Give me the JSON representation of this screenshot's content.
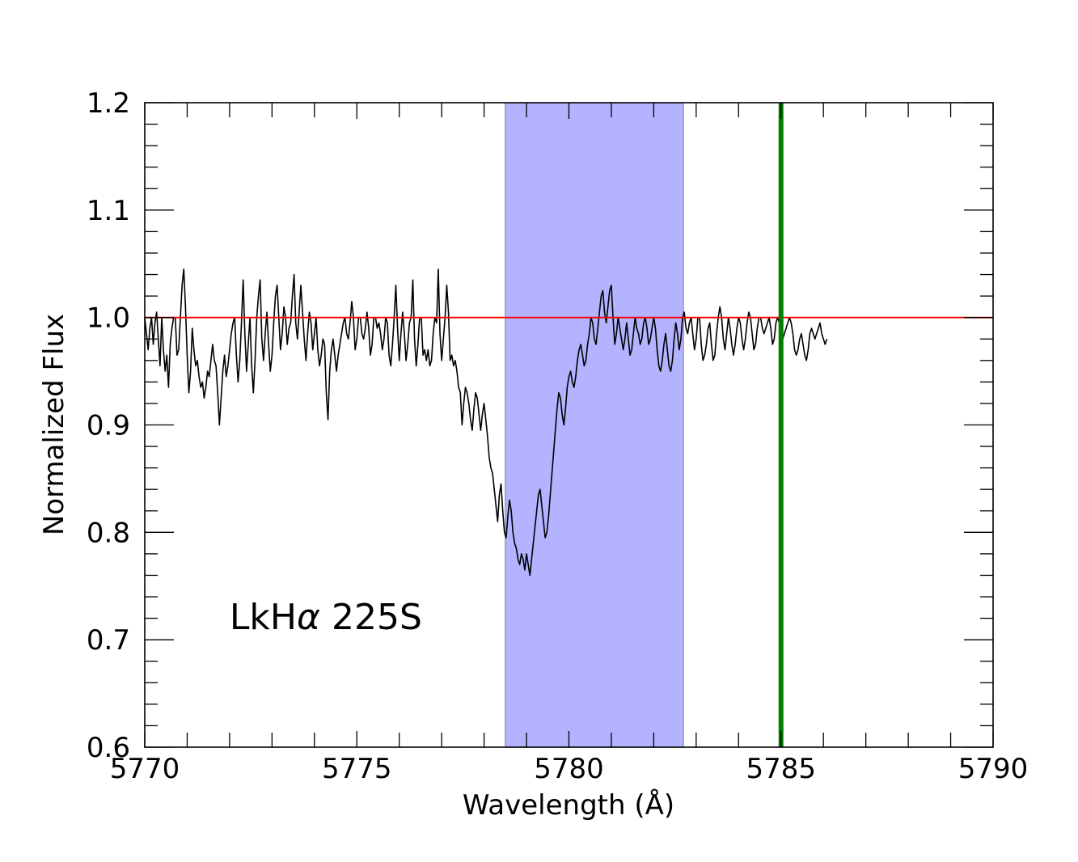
{
  "chart_data": {
    "type": "line",
    "xlabel": "Wavelength (Å)",
    "ylabel": "Normalized Flux",
    "xlim": [
      5770,
      5790
    ],
    "ylim": [
      0.6,
      1.2
    ],
    "x_ticks": [
      5770,
      5775,
      5780,
      5785,
      5790
    ],
    "x_tick_labels": [
      "5770",
      "5775",
      "5780",
      "5785",
      "5790"
    ],
    "y_ticks": [
      0.6,
      0.7,
      0.8,
      0.9,
      1.0,
      1.1,
      1.2
    ],
    "y_tick_labels": [
      "0.6",
      "0.7",
      "0.8",
      "0.9",
      "1.0",
      "1.1",
      "1.2"
    ],
    "annotation": {
      "prefix": "LkH",
      "greek": "α",
      "suffix": " 225S",
      "x": 5772,
      "y": 0.71
    },
    "shaded_region": {
      "x0": 5778.5,
      "x1": 5782.7,
      "color": "#b3b3ff"
    },
    "reference_line": {
      "y": 1.0,
      "color": "#ff0000"
    },
    "vertical_line": {
      "x": 5785.0,
      "color": "#008000"
    },
    "spectrum": {
      "color": "#000000",
      "x_start": 5770.0,
      "x_step": 0.04,
      "flux": [
        1.0,
        0.985,
        0.97,
        0.99,
        1.0,
        0.975,
        0.995,
        1.005,
        0.98,
        0.955,
        1.0,
        0.97,
        0.95,
        0.965,
        0.935,
        0.975,
        0.99,
        1.0,
        1.0,
        0.965,
        0.97,
        1.0,
        1.03,
        1.045,
        1.01,
        0.965,
        0.93,
        0.95,
        0.99,
        0.97,
        0.955,
        0.96,
        0.945,
        0.935,
        0.94,
        0.925,
        0.935,
        0.95,
        0.945,
        0.96,
        0.975,
        0.96,
        0.955,
        0.93,
        0.9,
        0.925,
        0.95,
        0.965,
        0.945,
        0.955,
        0.97,
        0.985,
        0.995,
        1.0,
        0.965,
        0.94,
        0.96,
        0.995,
        1.035,
        0.985,
        0.95,
        0.975,
        1.0,
        0.955,
        0.93,
        0.96,
        1.0,
        1.02,
        1.035,
        0.98,
        0.96,
        0.985,
        1.005,
        0.975,
        0.95,
        0.965,
        0.995,
        1.02,
        1.03,
        1.0,
        0.97,
        0.985,
        1.01,
        1.0,
        0.975,
        0.99,
        0.995,
        1.02,
        1.04,
        0.995,
        0.98,
        1.005,
        1.03,
        1.005,
        0.98,
        0.96,
        0.985,
        1.005,
        0.995,
        0.97,
        0.985,
        1.0,
        0.97,
        0.955,
        0.965,
        0.98,
        0.975,
        0.93,
        0.905,
        0.95,
        0.97,
        0.98,
        0.965,
        0.95,
        0.965,
        0.975,
        0.985,
        0.995,
        1.0,
        0.985,
        0.98,
        0.995,
        1.015,
        1.0,
        0.97,
        0.98,
        1.0,
        1.0,
        0.985,
        0.98,
        0.99,
        1.005,
        0.99,
        0.965,
        0.975,
        1.0,
        1.0,
        0.99,
        0.995,
        0.985,
        0.97,
        0.98,
        1.0,
        0.995,
        0.965,
        0.955,
        0.975,
        1.0,
        1.03,
        0.99,
        0.96,
        0.985,
        1.005,
        0.985,
        0.96,
        0.975,
        0.995,
        1.0,
        1.035,
        0.98,
        0.955,
        0.975,
        1.0,
        1.0,
        0.965,
        0.97,
        0.96,
        0.97,
        0.955,
        0.96,
        0.985,
        1.0,
        0.995,
        1.045,
        0.985,
        0.96,
        0.98,
        1.0,
        1.03,
        1.005,
        0.96,
        0.965,
        0.955,
        0.96,
        0.95,
        0.935,
        0.93,
        0.9,
        0.92,
        0.935,
        0.93,
        0.92,
        0.905,
        0.895,
        0.915,
        0.93,
        0.925,
        0.91,
        0.895,
        0.91,
        0.92,
        0.905,
        0.89,
        0.87,
        0.86,
        0.855,
        0.84,
        0.825,
        0.81,
        0.835,
        0.845,
        0.82,
        0.8,
        0.795,
        0.815,
        0.83,
        0.82,
        0.8,
        0.79,
        0.785,
        0.775,
        0.77,
        0.78,
        0.775,
        0.765,
        0.78,
        0.77,
        0.76,
        0.775,
        0.79,
        0.805,
        0.82,
        0.835,
        0.84,
        0.825,
        0.81,
        0.795,
        0.8,
        0.815,
        0.835,
        0.855,
        0.875,
        0.895,
        0.915,
        0.93,
        0.925,
        0.91,
        0.9,
        0.915,
        0.935,
        0.945,
        0.95,
        0.94,
        0.935,
        0.945,
        0.96,
        0.97,
        0.975,
        0.965,
        0.955,
        0.96,
        0.975,
        0.985,
        1.0,
        0.995,
        0.98,
        0.975,
        0.99,
        1.005,
        1.02,
        1.025,
        1.005,
        0.995,
        1.01,
        1.025,
        1.03,
        1.0,
        0.975,
        0.985,
        1.0,
        0.99,
        0.98,
        0.97,
        0.98,
        0.995,
        0.98,
        0.965,
        0.97,
        0.985,
        1.0,
        0.99,
        0.985,
        0.975,
        0.98,
        0.995,
        1.0,
        0.99,
        0.975,
        0.98,
        0.99,
        1.0,
        0.99,
        0.97,
        0.955,
        0.95,
        0.96,
        0.975,
        0.985,
        0.97,
        0.955,
        0.95,
        0.96,
        0.98,
        0.995,
        0.985,
        0.97,
        0.98,
        1.0,
        1.005,
        0.99,
        0.985,
        0.995,
        1.0,
        0.985,
        0.97,
        0.98,
        1.0,
        1.0,
        0.975,
        0.96,
        0.965,
        0.975,
        0.99,
        0.995,
        0.975,
        0.96,
        0.965,
        0.985,
        1.0,
        1.01,
        1.0,
        0.98,
        0.97,
        0.985,
        1.0,
        0.99,
        0.975,
        0.965,
        0.975,
        0.99,
        1.0,
        0.995,
        0.98,
        0.97,
        0.98,
        0.995,
        1.005,
        1.0,
        0.985,
        0.97,
        0.975,
        0.99,
        1.0,
        1.0,
        0.99,
        0.985,
        0.99,
        0.995,
        1.0,
        0.99,
        0.975,
        0.98,
        0.995,
        1.0,
        0.995,
        0.985,
        0.98,
        0.985,
        0.99,
        0.995,
        1.0,
        0.995,
        0.985,
        0.97,
        0.965,
        0.97,
        0.98,
        0.985,
        0.975,
        0.965,
        0.96,
        0.97,
        0.985,
        0.99,
        0.985,
        0.98,
        0.985,
        0.99,
        0.995,
        0.985,
        0.98,
        0.975,
        0.98
      ]
    }
  }
}
